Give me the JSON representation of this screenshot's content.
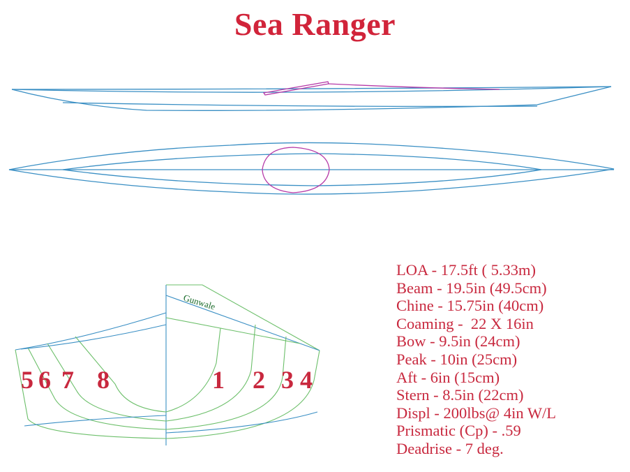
{
  "title": "Sea Ranger",
  "colors": {
    "title": "#d1243a",
    "text": "#c8283e",
    "hull": "#3a8fc4",
    "cockpit": "#b63aa8",
    "stations": "#6cbf6a",
    "gunwale_label": "#1a6b2a"
  },
  "gunwale_label": "Gunwale",
  "station_numbers": [
    "5",
    "6",
    "7",
    "8",
    "1",
    "2",
    "3",
    "4"
  ],
  "specs": [
    "LOA - 17.5ft ( 5.33m)",
    "Beam - 19.5in (49.5cm)",
    "Chine - 15.75in (40cm)",
    "Coaming -  22 X 16in",
    "Bow - 9.5in (24cm)",
    "Peak - 10in (25cm)",
    "Aft - 6in (15cm)",
    "Stern - 8.5in (22cm)",
    "Displ - 200lbs@ 4in W/L",
    "Prismatic (Cp) - .59",
    "Deadrise - 7 deg."
  ]
}
